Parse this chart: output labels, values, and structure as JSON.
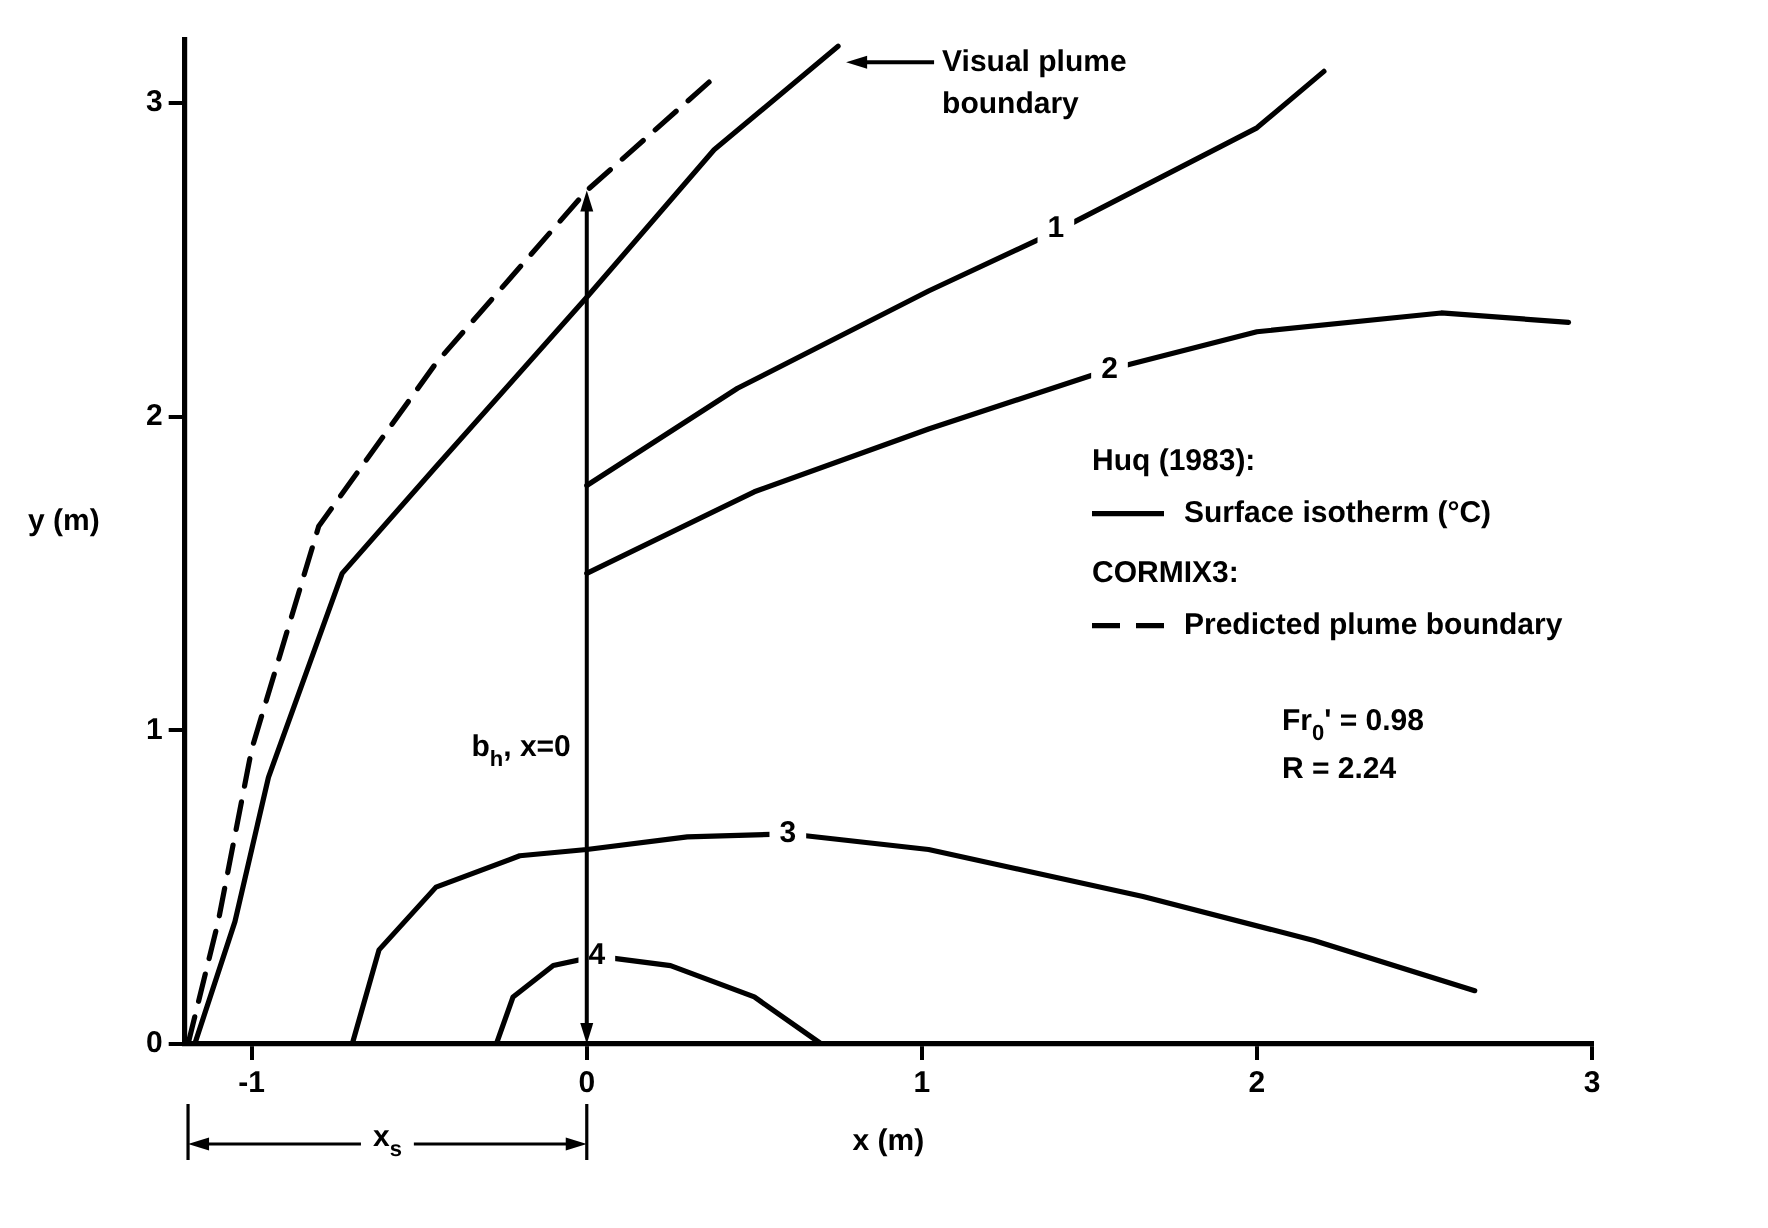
{
  "chart_data": {
    "type": "line",
    "xlabel": "x (m)",
    "ylabel": "y (m)",
    "xlim": [
      -1.2,
      3
    ],
    "ylim": [
      0,
      3.2
    ],
    "xticks": [
      -1,
      0,
      1,
      2,
      3
    ],
    "yticks": [
      0,
      1,
      2,
      3
    ],
    "legend": "right",
    "series": [
      {
        "color": "#000000",
        "line_style": "solid",
        "x": [
          -1.17,
          -1.05,
          -0.95,
          -0.73,
          -0.45,
          0,
          0.38,
          0.75
        ],
        "values": [
          0,
          0.39,
          0.85,
          1.5,
          1.84,
          2.38,
          2.85,
          3.18
        ]
      },
      {
        "color": "#000000",
        "line_style": "solid",
        "x": [
          0,
          0.45,
          1.02,
          1.4,
          2.0,
          2.2
        ],
        "values": [
          1.78,
          2.09,
          2.4,
          2.59,
          2.92,
          3.1
        ]
      },
      {
        "color": "#000000",
        "line_style": "solid",
        "x": [
          0,
          0.5,
          1.02,
          1.56,
          2.0,
          2.55,
          2.93
        ],
        "values": [
          1.5,
          1.76,
          1.96,
          2.15,
          2.27,
          2.33,
          2.3
        ]
      },
      {
        "color": "#000000",
        "line_style": "solid",
        "x": [
          -0.7,
          -0.62,
          -0.45,
          -0.2,
          0,
          0.3,
          0.6,
          1.02,
          1.66,
          2.17,
          2.65
        ],
        "values": [
          0,
          0.3,
          0.5,
          0.6,
          0.62,
          0.66,
          0.67,
          0.62,
          0.47,
          0.33,
          0.17
        ]
      },
      {
        "color": "#000000",
        "line_style": "solid",
        "x": [
          -0.27,
          -0.22,
          -0.1,
          0.03,
          0.25,
          0.5,
          0.7
        ],
        "values": [
          0,
          0.15,
          0.25,
          0.28,
          0.25,
          0.15,
          0
        ]
      },
      {
        "name": "Predicted plume boundary",
        "color": "#000000",
        "line_style": "dashed",
        "x": [
          -1.19,
          -1.1,
          -1.0,
          -0.8,
          -0.45,
          0,
          0.38
        ],
        "values": [
          0,
          0.39,
          0.94,
          1.65,
          2.17,
          2.72,
          3.08
        ]
      }
    ],
    "annotations": [
      "Visual plume boundary",
      {
        "text": "1",
        "x": 1.4,
        "y": 2.6
      },
      {
        "text": "2",
        "x": 1.56,
        "y": 2.15
      },
      {
        "text": "3",
        "x": 0.6,
        "y": 0.67
      },
      {
        "text": "4",
        "x": 0.03,
        "y": 0.28
      },
      "b$_{h}$, x=0",
      "x$_{s}$",
      "Huq (1983):",
      "Surface isotherm (°C)",
      "CORMIX3:",
      "Fr$_{0}$' = 0.98",
      "R = 2.24"
    ]
  }
}
